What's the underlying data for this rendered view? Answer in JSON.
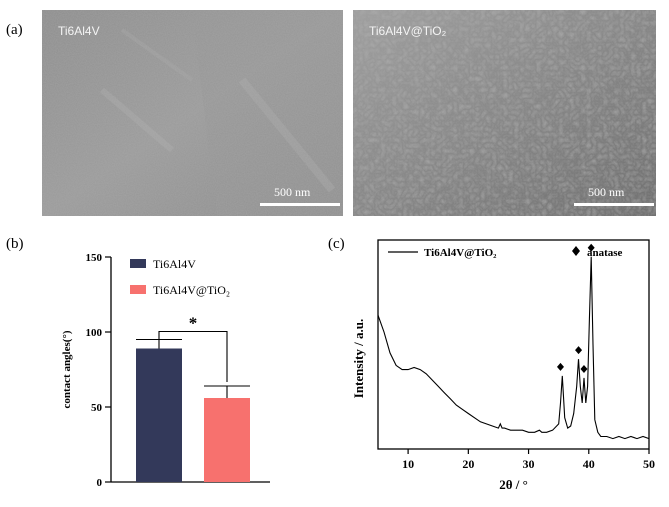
{
  "panels": {
    "a": {
      "letter": "(a)",
      "images": [
        {
          "label": "Ti6Al4V",
          "scale_label": "500 nm"
        },
        {
          "label": "Ti6Al4V@TiO₂",
          "scale_label": "500 nm"
        }
      ]
    },
    "b": {
      "letter": "(b)"
    },
    "c": {
      "letter": "(c)"
    }
  },
  "chart_data": [
    {
      "type": "bar",
      "categories": [
        "Ti6Al4V",
        "Ti6Al4V@TiO₂"
      ],
      "values": [
        89,
        56
      ],
      "errors": [
        6,
        8
      ],
      "colors": [
        "#33395a",
        "#f7716e"
      ],
      "ylabel": "contact angles(°)",
      "ylim": [
        0,
        150
      ],
      "yticks": [
        0,
        50,
        100,
        150
      ],
      "legend": [
        {
          "label": "Ti6Al4V",
          "color": "#33395a"
        },
        {
          "label": "Ti6Al4V@TiO₂",
          "color": "#f7716e"
        }
      ],
      "significance": "*"
    },
    {
      "type": "line",
      "series": [
        {
          "name": "Ti6Al4V@TiO₂",
          "x": [
            5,
            6,
            7,
            8,
            9,
            10,
            11,
            12,
            13,
            14,
            15,
            16,
            17,
            18,
            19,
            20,
            21,
            22,
            23,
            24,
            25,
            25.3,
            25.6,
            26,
            27,
            28,
            29,
            30,
            31,
            31.8,
            32.2,
            33,
            34,
            35,
            35.3,
            35.6,
            36,
            36.5,
            37,
            37.5,
            38,
            38.3,
            38.6,
            38.9,
            39.2,
            39.5,
            39.8,
            40.1,
            40.4,
            40.7,
            41,
            41.5,
            42,
            43,
            44,
            45,
            46,
            47,
            48,
            49,
            50
          ],
          "y": [
            0.64,
            0.56,
            0.46,
            0.4,
            0.38,
            0.38,
            0.39,
            0.38,
            0.36,
            0.33,
            0.3,
            0.27,
            0.24,
            0.21,
            0.19,
            0.17,
            0.15,
            0.13,
            0.12,
            0.11,
            0.1,
            0.12,
            0.1,
            0.1,
            0.09,
            0.09,
            0.09,
            0.08,
            0.08,
            0.09,
            0.08,
            0.08,
            0.09,
            0.12,
            0.22,
            0.35,
            0.15,
            0.1,
            0.11,
            0.17,
            0.3,
            0.43,
            0.3,
            0.22,
            0.34,
            0.22,
            0.3,
            0.62,
            0.92,
            0.5,
            0.14,
            0.08,
            0.06,
            0.06,
            0.05,
            0.06,
            0.05,
            0.06,
            0.05,
            0.06,
            0.05
          ]
        }
      ],
      "xlabel": "2θ / °",
      "ylabel": "Intensity / a.u.",
      "xlim": [
        5,
        50
      ],
      "xticks": [
        10,
        20,
        30,
        40,
        50
      ],
      "markers": [
        {
          "x": 35.3,
          "y": 0.35
        },
        {
          "x": 38.3,
          "y": 0.43
        },
        {
          "x": 39.2,
          "y": 0.34
        },
        {
          "x": 40.4,
          "y": 0.92
        }
      ],
      "legend": {
        "series_label": "Ti6Al4V@TiO₂",
        "marker_label": "anatase"
      }
    }
  ]
}
